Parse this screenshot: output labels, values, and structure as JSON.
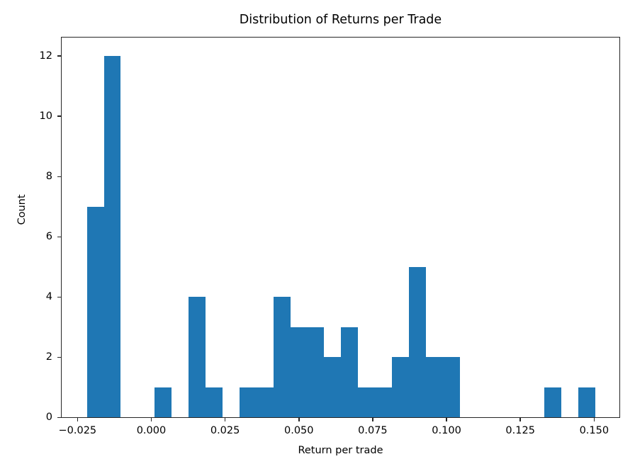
{
  "chart_data": {
    "type": "bar",
    "subtype": "histogram",
    "title": "Distribution of Returns per Trade",
    "xlabel": "Return per trade",
    "ylabel": "Count",
    "bin_start": -0.0218,
    "bin_width": 0.00574,
    "counts": [
      7,
      12,
      0,
      0,
      1,
      0,
      4,
      1,
      0,
      1,
      1,
      4,
      3,
      3,
      2,
      3,
      1,
      1,
      2,
      5,
      2,
      2,
      0,
      0,
      0,
      0,
      0,
      1,
      0,
      1
    ],
    "xlim": [
      -0.0306,
      0.1588
    ],
    "ylim": [
      0,
      12.64
    ],
    "x_ticks": [
      {
        "value": -0.025,
        "label": "−0.025"
      },
      {
        "value": 0.0,
        "label": "0.000"
      },
      {
        "value": 0.025,
        "label": "0.025"
      },
      {
        "value": 0.05,
        "label": "0.050"
      },
      {
        "value": 0.075,
        "label": "0.075"
      },
      {
        "value": 0.1,
        "label": "0.100"
      },
      {
        "value": 0.125,
        "label": "0.125"
      },
      {
        "value": 0.15,
        "label": "0.150"
      }
    ],
    "y_ticks": [
      {
        "value": 0,
        "label": "0"
      },
      {
        "value": 2,
        "label": "2"
      },
      {
        "value": 4,
        "label": "4"
      },
      {
        "value": 6,
        "label": "6"
      },
      {
        "value": 8,
        "label": "8"
      },
      {
        "value": 10,
        "label": "10"
      },
      {
        "value": 12,
        "label": "12"
      }
    ],
    "bar_color": "#1f77b4",
    "axis_color": "#262626",
    "background_color": "#ffffff",
    "grid": false,
    "legend": null
  }
}
